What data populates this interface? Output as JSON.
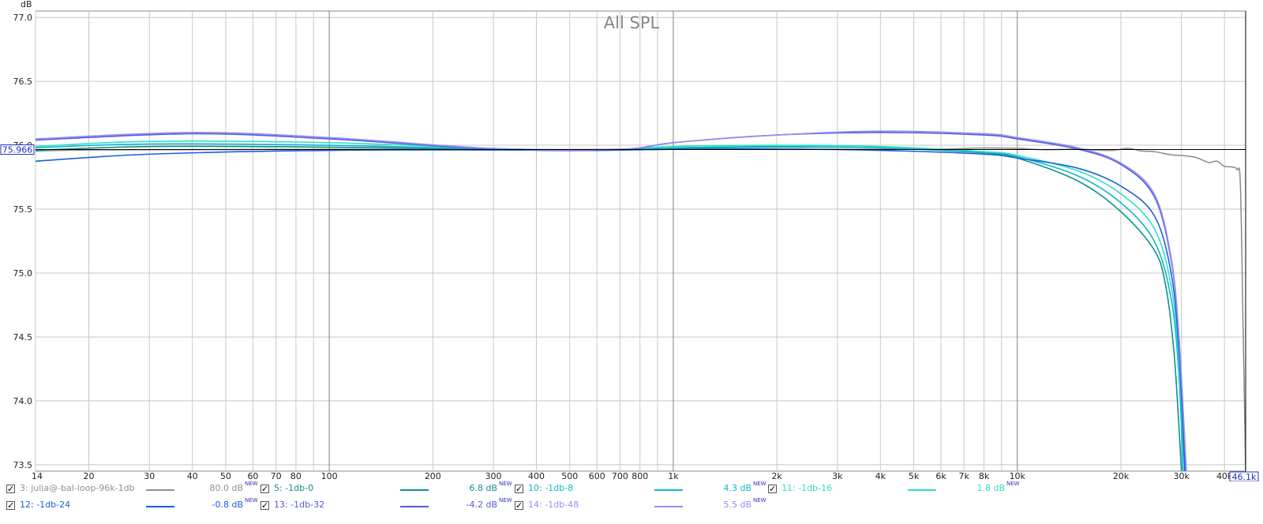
{
  "chart_data": {
    "type": "line",
    "title": "All SPL",
    "ylabel": "dB",
    "x_scale": "log",
    "xlim": [
      14,
      46100
    ],
    "ylim": [
      73.45,
      77.05
    ],
    "x_ticks": [
      {
        "v": 14,
        "label": "14"
      },
      {
        "v": 20,
        "label": "20"
      },
      {
        "v": 30,
        "label": "30"
      },
      {
        "v": 40,
        "label": "40"
      },
      {
        "v": 50,
        "label": "50"
      },
      {
        "v": 60,
        "label": "60"
      },
      {
        "v": 70,
        "label": "70"
      },
      {
        "v": 80,
        "label": "80"
      },
      {
        "v": 100,
        "label": "100"
      },
      {
        "v": 200,
        "label": "200"
      },
      {
        "v": 300,
        "label": "300"
      },
      {
        "v": 400,
        "label": "400"
      },
      {
        "v": 500,
        "label": "500"
      },
      {
        "v": 600,
        "label": "600"
      },
      {
        "v": 700,
        "label": "700"
      },
      {
        "v": 800,
        "label": "800"
      },
      {
        "v": 1000,
        "label": "1k"
      },
      {
        "v": 2000,
        "label": "2k"
      },
      {
        "v": 3000,
        "label": "3k"
      },
      {
        "v": 4000,
        "label": "4k"
      },
      {
        "v": 5000,
        "label": "5k"
      },
      {
        "v": 6000,
        "label": "6k"
      },
      {
        "v": 7000,
        "label": "7k"
      },
      {
        "v": 8000,
        "label": "8k"
      },
      {
        "v": 10000,
        "label": "10k"
      },
      {
        "v": 20000,
        "label": "20k"
      },
      {
        "v": 30000,
        "label": "30k"
      },
      {
        "v": 40000,
        "label": "40k"
      }
    ],
    "x_minor": [
      90,
      900,
      9000
    ],
    "y_ticks": [
      {
        "v": 77.0,
        "label": "77.0"
      },
      {
        "v": 76.5,
        "label": "76.5"
      },
      {
        "v": 76.0,
        "label": "76.0"
      },
      {
        "v": 75.5,
        "label": "75.5"
      },
      {
        "v": 75.0,
        "label": "75.0"
      },
      {
        "v": 74.5,
        "label": "74.5"
      },
      {
        "v": 74.0,
        "label": "74.0"
      },
      {
        "v": 73.5,
        "label": "73.5"
      }
    ],
    "cursor_y": {
      "value": 75.966,
      "label": "75.966"
    },
    "cursor_x": {
      "value": 46100,
      "label": "46.1k"
    },
    "series": [
      {
        "name": "3: julia@-bal-loop-96k-1db",
        "color": "#909090",
        "offset": "80.0 dB",
        "checked": true,
        "muted": true,
        "points": [
          [
            14,
            75.955
          ],
          [
            20,
            75.963
          ],
          [
            50,
            75.966
          ],
          [
            100,
            75.968
          ],
          [
            300,
            75.966
          ],
          [
            1000,
            75.968
          ],
          [
            3000,
            75.968
          ],
          [
            6000,
            75.97
          ],
          [
            8000,
            75.978
          ],
          [
            10000,
            75.975
          ],
          [
            12000,
            75.965
          ],
          [
            15000,
            75.97
          ],
          [
            17000,
            75.962
          ],
          [
            19000,
            75.96
          ],
          [
            21000,
            75.975
          ],
          [
            23000,
            75.955
          ],
          [
            25000,
            75.95
          ],
          [
            28000,
            75.925
          ],
          [
            30000,
            75.92
          ],
          [
            33000,
            75.905
          ],
          [
            36000,
            75.865
          ],
          [
            38000,
            75.875
          ],
          [
            40000,
            75.835
          ],
          [
            42000,
            75.83
          ],
          [
            43500,
            75.81
          ],
          [
            44500,
            75.7
          ],
          [
            45300,
            74.6
          ],
          [
            46100,
            73.45
          ]
        ]
      },
      {
        "name": "5: -1db-0",
        "color": "#109090",
        "offset": "6.8 dB",
        "checked": true,
        "points": [
          [
            14,
            75.96
          ],
          [
            30,
            75.99
          ],
          [
            100,
            75.985
          ],
          [
            300,
            75.966
          ],
          [
            600,
            75.96
          ],
          [
            1000,
            75.975
          ],
          [
            2000,
            75.985
          ],
          [
            4000,
            75.98
          ],
          [
            8000,
            75.94
          ],
          [
            10000,
            75.9
          ],
          [
            15000,
            75.72
          ],
          [
            20000,
            75.48
          ],
          [
            25000,
            75.18
          ],
          [
            27000,
            74.9
          ],
          [
            28500,
            74.4
          ],
          [
            29500,
            73.8
          ],
          [
            30000,
            73.45
          ]
        ]
      },
      {
        "name": "10: -1db-8",
        "color": "#10b8c8",
        "offset": "4.3 dB",
        "checked": true,
        "points": [
          [
            14,
            75.98
          ],
          [
            30,
            76.01
          ],
          [
            100,
            76.0
          ],
          [
            300,
            75.97
          ],
          [
            600,
            75.963
          ],
          [
            1000,
            75.98
          ],
          [
            2000,
            75.99
          ],
          [
            4000,
            75.98
          ],
          [
            8000,
            75.945
          ],
          [
            10000,
            75.91
          ],
          [
            15000,
            75.76
          ],
          [
            20000,
            75.55
          ],
          [
            25000,
            75.25
          ],
          [
            28000,
            74.8
          ],
          [
            29500,
            74.2
          ],
          [
            30300,
            73.45
          ]
        ]
      },
      {
        "name": "11: -1db-16",
        "color": "#30e0c8",
        "offset": "1.8 dB",
        "checked": true,
        "points": [
          [
            14,
            75.99
          ],
          [
            30,
            76.03
          ],
          [
            100,
            76.02
          ],
          [
            300,
            75.975
          ],
          [
            600,
            75.962
          ],
          [
            1000,
            75.99
          ],
          [
            2000,
            76.0
          ],
          [
            4000,
            75.99
          ],
          [
            8000,
            75.95
          ],
          [
            10000,
            75.92
          ],
          [
            15000,
            75.8
          ],
          [
            20000,
            75.62
          ],
          [
            25000,
            75.35
          ],
          [
            28000,
            74.9
          ],
          [
            29500,
            74.3
          ],
          [
            30600,
            73.45
          ]
        ]
      },
      {
        "name": "12: -1db-24",
        "color": "#1860e0",
        "offset": "-0.8 dB",
        "checked": true,
        "points": [
          [
            14,
            75.875
          ],
          [
            30,
            75.93
          ],
          [
            100,
            75.96
          ],
          [
            300,
            75.963
          ],
          [
            600,
            75.96
          ],
          [
            1000,
            75.968
          ],
          [
            2000,
            75.97
          ],
          [
            4000,
            75.96
          ],
          [
            8000,
            75.93
          ],
          [
            10000,
            75.9
          ],
          [
            15000,
            75.82
          ],
          [
            20000,
            75.68
          ],
          [
            25000,
            75.45
          ],
          [
            28000,
            75.0
          ],
          [
            29500,
            74.4
          ],
          [
            30700,
            73.45
          ]
        ]
      },
      {
        "name": "13: -1db-32",
        "color": "#5858e0",
        "offset": "-4.2 dB",
        "checked": true,
        "points": [
          [
            14,
            76.04
          ],
          [
            40,
            76.09
          ],
          [
            100,
            76.05
          ],
          [
            300,
            75.97
          ],
          [
            700,
            75.965
          ],
          [
            1000,
            76.02
          ],
          [
            2000,
            76.08
          ],
          [
            4000,
            76.1
          ],
          [
            8000,
            76.08
          ],
          [
            10000,
            76.05
          ],
          [
            15000,
            75.97
          ],
          [
            20000,
            75.85
          ],
          [
            25000,
            75.6
          ],
          [
            28000,
            75.1
          ],
          [
            29500,
            74.5
          ],
          [
            30900,
            73.45
          ]
        ]
      },
      {
        "name": "14: -1db-48",
        "color": "#9090f0",
        "offset": "5.5 dB",
        "checked": true,
        "muted": true,
        "points": [
          [
            14,
            76.05
          ],
          [
            40,
            76.1
          ],
          [
            100,
            76.06
          ],
          [
            300,
            75.975
          ],
          [
            700,
            75.97
          ],
          [
            1000,
            76.02
          ],
          [
            2000,
            76.08
          ],
          [
            4000,
            76.11
          ],
          [
            8000,
            76.09
          ],
          [
            10000,
            76.06
          ],
          [
            15000,
            75.98
          ],
          [
            20000,
            75.86
          ],
          [
            25000,
            75.62
          ],
          [
            28000,
            75.12
          ],
          [
            29500,
            74.5
          ],
          [
            31000,
            73.45
          ]
        ]
      }
    ]
  },
  "legend": {
    "new_badge": "NEW",
    "check_glyph": "✓",
    "items": [
      {
        "name": "3: julia@-bal-loop-96k-1db",
        "color": "#909090",
        "text_color": "#909090",
        "offset": "80.0 dB"
      },
      {
        "name": "5: -1db-0",
        "color": "#109090",
        "text_color": "#109090",
        "offset": "6.8 dB"
      },
      {
        "name": "10: -1db-8",
        "color": "#10b8c8",
        "text_color": "#10b8c8",
        "offset": "4.3 dB"
      },
      {
        "name": "11: -1db-16",
        "color": "#30e0c8",
        "text_color": "#30e0c8",
        "offset": "1.8 dB"
      },
      {
        "name": "12: -1db-24",
        "color": "#1860e0",
        "text_color": "#1860e0",
        "offset": "-0.8 dB"
      },
      {
        "name": "13: -1db-32",
        "color": "#5858e0",
        "text_color": "#5858e0",
        "offset": "-4.2 dB"
      },
      {
        "name": "14: -1db-48",
        "color": "#9090f0",
        "text_color": "#9090f0",
        "offset": "5.5 dB"
      }
    ]
  }
}
